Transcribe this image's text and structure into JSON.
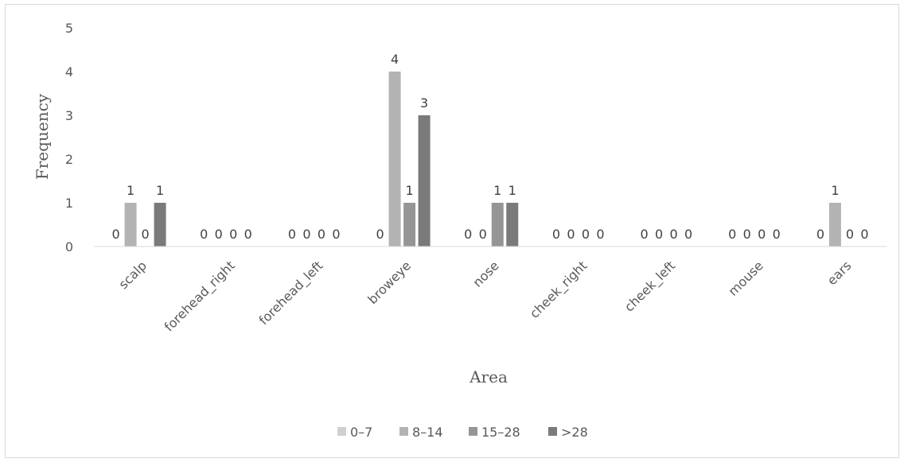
{
  "chart_data": {
    "type": "bar",
    "title": "",
    "xlabel": "Area",
    "ylabel": "Frequency",
    "ylim": [
      0,
      5
    ],
    "yticks": [
      "0",
      "1",
      "2",
      "3",
      "4",
      "5"
    ],
    "grid": false,
    "legend_position": "bottom",
    "categories": [
      "scalp",
      "forehead_right",
      "forehead_left",
      "broweye",
      "nose",
      "cheek_right",
      "cheek_left",
      "mouse",
      "ears"
    ],
    "series": [
      {
        "name": "0–7",
        "color": "#d0d0d0",
        "values": [
          0,
          0,
          0,
          0,
          0,
          0,
          0,
          0,
          0
        ]
      },
      {
        "name": "8–14",
        "color": "#b3b3b3",
        "values": [
          1,
          0,
          0,
          4,
          0,
          0,
          0,
          0,
          1
        ]
      },
      {
        "name": "15–28",
        "color": "#959595",
        "values": [
          0,
          0,
          0,
          1,
          1,
          0,
          0,
          0,
          0
        ]
      },
      {
        "name": ">28",
        "color": "#7a7a7a",
        "values": [
          1,
          0,
          0,
          3,
          1,
          0,
          0,
          0,
          0
        ]
      }
    ]
  }
}
